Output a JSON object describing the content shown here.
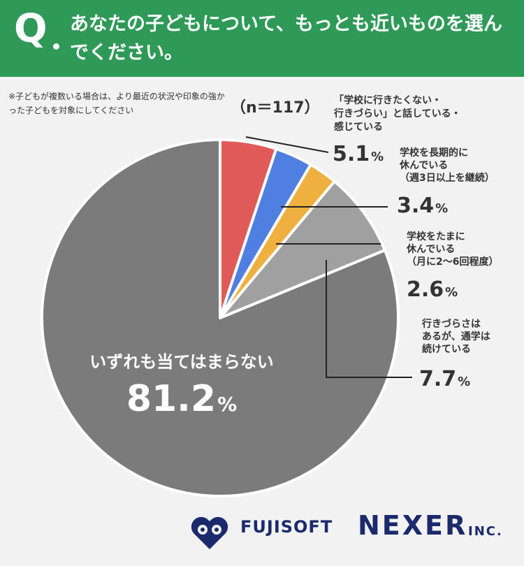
{
  "header": {
    "q_mark": "Q",
    "question": "あなたの子どもについて、もっとも近いものを選んでください。"
  },
  "note": "※子どもが複数いる場合は、より最近の状況や印象の強かった子どもを対象にしてください",
  "sample": "（n＝117）",
  "chart_data": {
    "type": "pie",
    "unit": "%",
    "slices": [
      {
        "label": "「学校に行きたくない・行きづらい」と話している・感じている",
        "value": 5.1,
        "color": "#e05a5a"
      },
      {
        "label": "学校を長期的に休んでいる（週3日以上を継続）",
        "value": 3.4,
        "color": "#4f7fe0"
      },
      {
        "label": "学校をたまに休んでいる（月に2〜6回程度）",
        "value": 2.6,
        "color": "#f0b040"
      },
      {
        "label": "行きづらさはあるが、通学は続けている",
        "value": 7.7,
        "color": "#a0a0a0"
      },
      {
        "label": "いずれも当てはまらない",
        "value": 81.2,
        "color": "#7c7b7b"
      }
    ]
  },
  "labels": {
    "s1": {
      "lines": [
        "「学校に行きたくない・",
        "行きづらい」と話している・",
        "感じている"
      ],
      "value": "5.1",
      "pct": "%"
    },
    "s2": {
      "lines": [
        "学校を長期的に",
        "休んでいる",
        "（週3日以上を継続）"
      ],
      "value": "3.4",
      "pct": "%"
    },
    "s3": {
      "lines": [
        "学校をたまに",
        "休んでいる",
        "（月に2〜6回程度）"
      ],
      "value": "2.6",
      "pct": "%"
    },
    "s4": {
      "lines": [
        "行きづらさは",
        "あるが、通学は",
        "続けている"
      ],
      "value": "7.7",
      "pct": "%"
    },
    "s5": {
      "label": "いずれも当てはまらない",
      "value": "81.2",
      "pct": "%"
    }
  },
  "footer": {
    "fujisoft": "FUJISOFT",
    "nexer": "NEXER",
    "inc": "INC."
  }
}
